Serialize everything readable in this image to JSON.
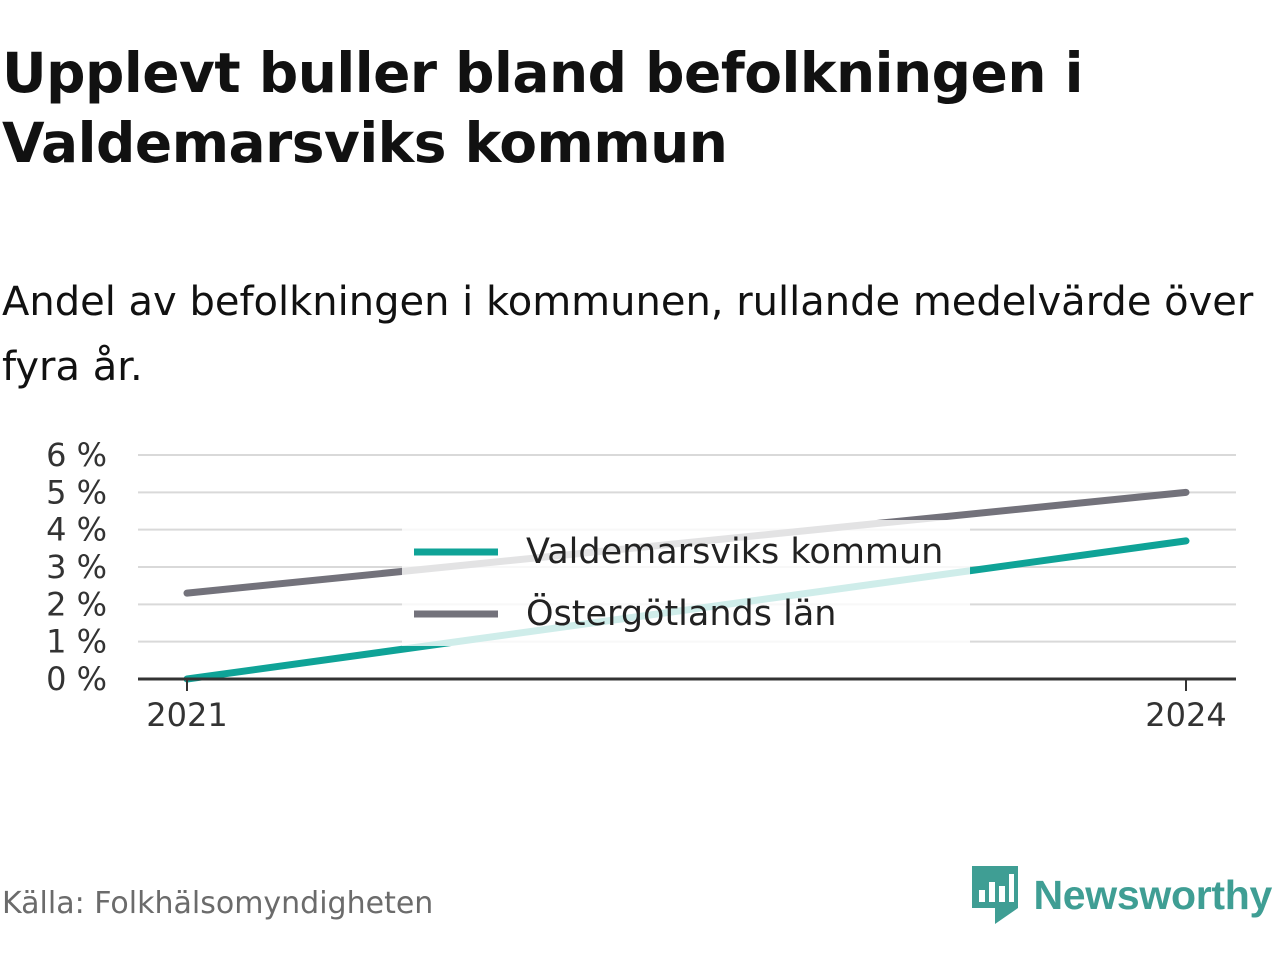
{
  "header": {
    "title": "Upplevt buller bland befolkningen i Valdemarsviks kommun",
    "subtitle": "Andel av befolkningen i kommunen, rullande medelvärde över fyra år."
  },
  "footer": {
    "source": "Källa: Folkhälsomyndigheten",
    "brand": "Newsworthy"
  },
  "colors": {
    "municipality": "#0fa397",
    "county": "#73727b",
    "grid": "#d9d9d9",
    "axis": "#333333",
    "brand": "#3f9e94"
  },
  "icons": {
    "brand_logo": "newsworthy-bar-chart-icon"
  },
  "chart_data": {
    "type": "line",
    "x": [
      2021,
      2024
    ],
    "x_tick_labels": [
      "2021",
      "2024"
    ],
    "y_ticks": [
      0,
      1,
      2,
      3,
      4,
      5,
      6
    ],
    "y_tick_labels": [
      "0 %",
      "1 %",
      "2 %",
      "3 %",
      "4 %",
      "5 %",
      "6 %"
    ],
    "ylim": [
      0,
      6
    ],
    "grid": true,
    "legend_position": "center",
    "series": [
      {
        "name": "Valdemarsviks kommun",
        "values": [
          0.0,
          3.7
        ],
        "color": "#0fa397"
      },
      {
        "name": "Östergötlands län",
        "values": [
          2.3,
          5.0
        ],
        "color": "#73727b"
      }
    ]
  }
}
